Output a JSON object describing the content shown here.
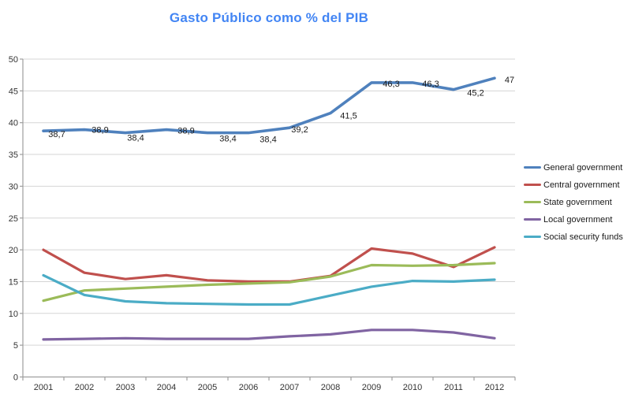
{
  "title": {
    "text": "Gasto Público como % del PIB",
    "color": "#4285F4"
  },
  "chart_data": {
    "type": "line",
    "title": "Gasto Público como % del PIB",
    "categories": [
      "2001",
      "2002",
      "2003",
      "2004",
      "2005",
      "2006",
      "2007",
      "2008",
      "2009",
      "2010",
      "2011",
      "2012"
    ],
    "series": [
      {
        "name": "General government",
        "color": "#4F81BD",
        "values": [
          38.7,
          38.9,
          38.4,
          38.9,
          38.4,
          38.4,
          39.2,
          41.5,
          46.3,
          46.3,
          45.2,
          47
        ],
        "point_labels": [
          "38,7",
          "38,9",
          "38,4",
          "38,9",
          "38,4",
          "38,4",
          "39,2",
          "41,5",
          "46,3",
          "46,3",
          "45,2",
          "47"
        ]
      },
      {
        "name": "Central government",
        "color": "#C0504D",
        "values": [
          20.0,
          16.4,
          15.4,
          16.0,
          15.2,
          15.0,
          15.0,
          15.9,
          20.2,
          19.4,
          17.3,
          20.4
        ],
        "point_labels": []
      },
      {
        "name": "State government",
        "color": "#9BBB59",
        "values": [
          12.0,
          13.6,
          13.9,
          14.2,
          14.5,
          14.7,
          14.9,
          15.8,
          17.6,
          17.5,
          17.6,
          17.9
        ],
        "point_labels": []
      },
      {
        "name": "Local government",
        "color": "#8064A2",
        "values": [
          5.9,
          6.0,
          6.1,
          6.0,
          6.0,
          6.0,
          6.4,
          6.7,
          7.4,
          7.4,
          7.0,
          6.1
        ],
        "point_labels": []
      },
      {
        "name": "Social security funds",
        "color": "#4BACC6",
        "values": [
          16.0,
          12.9,
          11.9,
          11.6,
          11.5,
          11.4,
          11.4,
          12.8,
          14.2,
          15.1,
          15.0,
          15.3
        ],
        "point_labels": []
      }
    ],
    "xlabel": "",
    "ylabel": "",
    "ylim": [
      0,
      50
    ],
    "ytick_interval": 5,
    "y_axis_labels": [
      "0",
      "5",
      "10",
      "15",
      "20",
      "25",
      "30",
      "35",
      "40",
      "45",
      "50"
    ],
    "grid": "horizontal",
    "legend_position": "right"
  },
  "colors": {
    "gridline": "#D5D5D5",
    "axis": "#9E9E9E",
    "tick_label": "#333333",
    "data_label": "#1A1A1A",
    "legend_text": "#1A1A1A",
    "background": "#FFFFFF"
  }
}
